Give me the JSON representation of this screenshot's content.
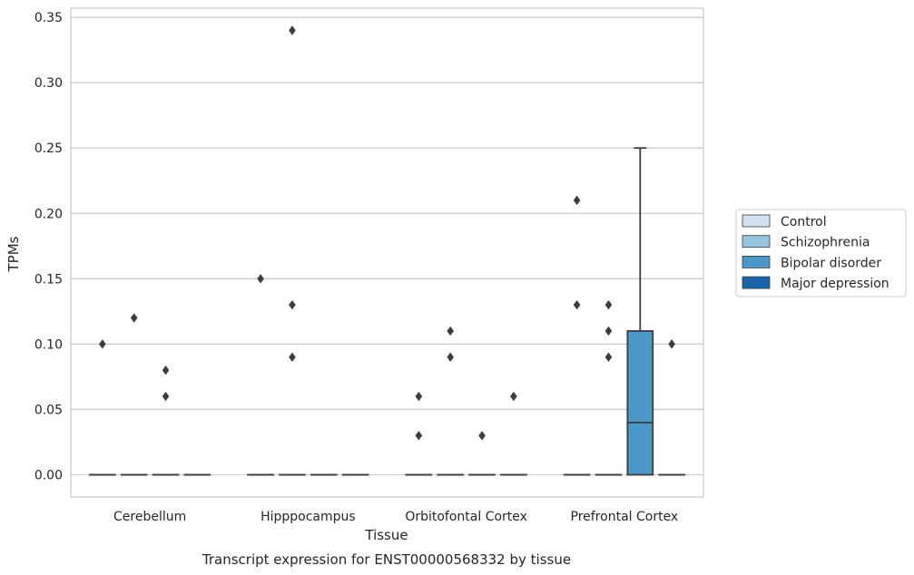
{
  "chart_data": {
    "type": "box",
    "xlabel": "Tissue",
    "ylabel": "TPMs",
    "caption": "Transcript expression for ENST00000568332 by tissue",
    "categories": [
      "Cerebellum",
      "Hipppocampus",
      "Orbitofontal Cortex",
      "Prefrontal Cortex"
    ],
    "ylim": [
      -0.017,
      0.357
    ],
    "yticks": [
      0.0,
      0.05,
      0.1,
      0.15,
      0.2,
      0.25,
      0.3,
      0.35
    ],
    "ytick_labels": [
      "0.00",
      "0.05",
      "0.10",
      "0.15",
      "0.20",
      "0.25",
      "0.30",
      "0.35"
    ],
    "grid": true,
    "legend_position": "right",
    "series": [
      {
        "name": "Control",
        "color": "#d0e1f2",
        "boxes": [
          {
            "q1": 0,
            "median": 0,
            "q3": 0,
            "whisker_low": 0,
            "whisker_high": 0,
            "outliers": [
              0.1
            ]
          },
          {
            "q1": 0,
            "median": 0,
            "q3": 0,
            "whisker_low": 0,
            "whisker_high": 0,
            "outliers": [
              0.15
            ]
          },
          {
            "q1": 0,
            "median": 0,
            "q3": 0,
            "whisker_low": 0,
            "whisker_high": 0,
            "outliers": [
              0.03,
              0.06
            ]
          },
          {
            "q1": 0,
            "median": 0,
            "q3": 0,
            "whisker_low": 0,
            "whisker_high": 0,
            "outliers": [
              0.21,
              0.13
            ]
          }
        ]
      },
      {
        "name": "Schizophrenia",
        "color": "#94c4df",
        "boxes": [
          {
            "q1": 0,
            "median": 0,
            "q3": 0,
            "whisker_low": 0,
            "whisker_high": 0,
            "outliers": [
              0.12
            ]
          },
          {
            "q1": 0,
            "median": 0,
            "q3": 0,
            "whisker_low": 0,
            "whisker_high": 0,
            "outliers": [
              0.34,
              0.13,
              0.09
            ]
          },
          {
            "q1": 0,
            "median": 0,
            "q3": 0,
            "whisker_low": 0,
            "whisker_high": 0,
            "outliers": [
              0.11,
              0.09
            ]
          },
          {
            "q1": 0,
            "median": 0,
            "q3": 0,
            "whisker_low": 0,
            "whisker_high": 0,
            "outliers": [
              0.13,
              0.11,
              0.09
            ]
          }
        ]
      },
      {
        "name": "Bipolar disorder",
        "color": "#4a98c9",
        "boxes": [
          {
            "q1": 0,
            "median": 0,
            "q3": 0,
            "whisker_low": 0,
            "whisker_high": 0,
            "outliers": [
              0.08,
              0.06
            ]
          },
          {
            "q1": 0,
            "median": 0,
            "q3": 0,
            "whisker_low": 0,
            "whisker_high": 0,
            "outliers": []
          },
          {
            "q1": 0,
            "median": 0,
            "q3": 0,
            "whisker_low": 0,
            "whisker_high": 0,
            "outliers": [
              0.03
            ]
          },
          {
            "q1": 0,
            "median": 0.04,
            "q3": 0.11,
            "whisker_low": 0,
            "whisker_high": 0.25,
            "outliers": []
          }
        ]
      },
      {
        "name": "Major depression",
        "color": "#1764ab",
        "boxes": [
          {
            "q1": 0,
            "median": 0,
            "q3": 0,
            "whisker_low": 0,
            "whisker_high": 0,
            "outliers": []
          },
          {
            "q1": 0,
            "median": 0,
            "q3": 0,
            "whisker_low": 0,
            "whisker_high": 0,
            "outliers": []
          },
          {
            "q1": 0,
            "median": 0,
            "q3": 0,
            "whisker_low": 0,
            "whisker_high": 0,
            "outliers": [
              0.06
            ]
          },
          {
            "q1": 0,
            "median": 0,
            "q3": 0,
            "whisker_low": 0,
            "whisker_high": 0,
            "outliers": [
              0.1
            ]
          }
        ]
      }
    ]
  }
}
